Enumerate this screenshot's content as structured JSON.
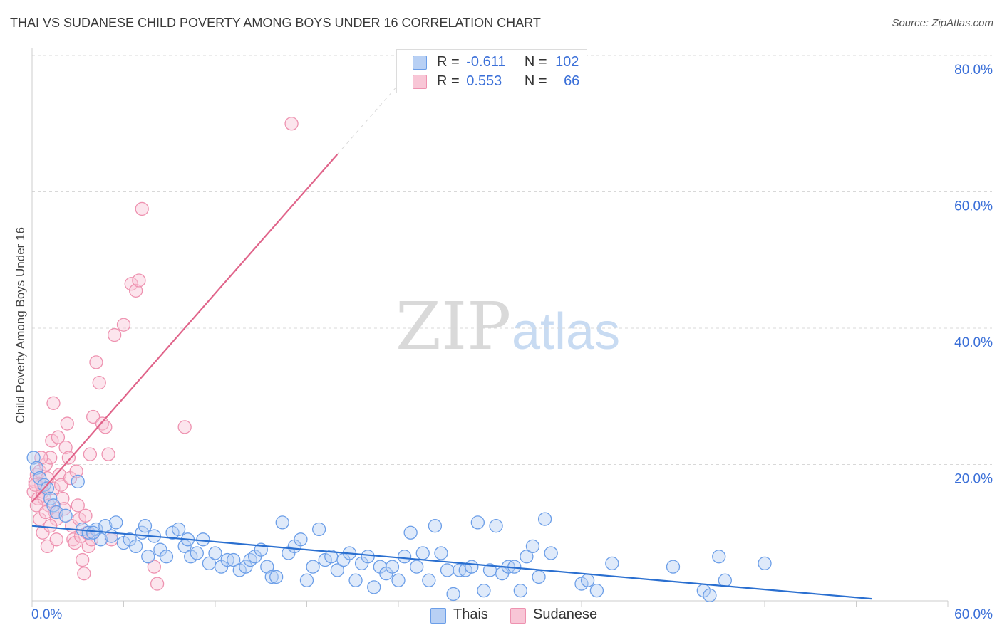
{
  "title": "THAI VS SUDANESE CHILD POVERTY AMONG BOYS UNDER 16 CORRELATION CHART",
  "source": "Source: ZipAtlas.com",
  "watermark": {
    "zip": "ZIP",
    "atlas": "atlas"
  },
  "colors": {
    "thai": "#6b9ee8",
    "thai_fill": "#b8d0f4",
    "thai_line": "#2a6fd0",
    "sudanese": "#ee92b0",
    "sudanese_fill": "#f8c6d6",
    "sudanese_line": "#e0648a",
    "axis_text": "#3a6fd8",
    "grid": "#d8d8d8"
  },
  "legend": {
    "thai": {
      "r_label": "R =",
      "r_value": "-0.611",
      "n_label": "N =",
      "n_value": "102"
    },
    "sudanese": {
      "r_label": "R =",
      "r_value": "0.553",
      "n_label": "N =",
      "n_value": "66"
    }
  },
  "bottom_legend": {
    "thai": "Thais",
    "sudanese": "Sudanese"
  },
  "chart_data": {
    "type": "scatter",
    "ylabel": "Child Poverty Among Boys Under 16",
    "xlabel": "",
    "xlim": [
      0,
      60
    ],
    "ylim": [
      0,
      80
    ],
    "x_tick_labels": [
      "0.0%",
      "60.0%"
    ],
    "y_tick_labels": [
      "20.0%",
      "40.0%",
      "60.0%",
      "80.0%"
    ],
    "y_ticks": [
      20,
      40,
      60,
      80
    ],
    "series": [
      {
        "name": "Thais",
        "trend": {
          "x": [
            0,
            55
          ],
          "y": [
            11.0,
            0.3
          ]
        },
        "points": [
          [
            0.1,
            21
          ],
          [
            0.3,
            19.5
          ],
          [
            0.5,
            18
          ],
          [
            0.8,
            17
          ],
          [
            1.0,
            16.5
          ],
          [
            1.2,
            15
          ],
          [
            1.4,
            14
          ],
          [
            1.6,
            13
          ],
          [
            2.2,
            12.5
          ],
          [
            3.0,
            17.5
          ],
          [
            3.3,
            10.5
          ],
          [
            3.7,
            10
          ],
          [
            4.2,
            10.5
          ],
          [
            4.5,
            9
          ],
          [
            4.8,
            11
          ],
          [
            5.2,
            9.5
          ],
          [
            5.5,
            11.5
          ],
          [
            6.0,
            8.5
          ],
          [
            6.4,
            9
          ],
          [
            6.8,
            8
          ],
          [
            7.2,
            10
          ],
          [
            7.6,
            6.5
          ],
          [
            8.0,
            9.5
          ],
          [
            8.4,
            7.5
          ],
          [
            8.8,
            6.5
          ],
          [
            9.2,
            10
          ],
          [
            9.6,
            10.5
          ],
          [
            10.0,
            8
          ],
          [
            10.4,
            6.5
          ],
          [
            10.8,
            7
          ],
          [
            11.2,
            9
          ],
          [
            11.6,
            5.5
          ],
          [
            12.0,
            7
          ],
          [
            12.4,
            5
          ],
          [
            12.8,
            6
          ],
          [
            13.2,
            6
          ],
          [
            13.6,
            4.5
          ],
          [
            14.0,
            5
          ],
          [
            14.3,
            6
          ],
          [
            14.6,
            6.5
          ],
          [
            15.0,
            7.5
          ],
          [
            15.4,
            5
          ],
          [
            15.7,
            3.5
          ],
          [
            16.0,
            3.5
          ],
          [
            16.4,
            11.5
          ],
          [
            16.8,
            7
          ],
          [
            17.2,
            8
          ],
          [
            17.6,
            9
          ],
          [
            18.0,
            3
          ],
          [
            18.4,
            5
          ],
          [
            18.8,
            10.5
          ],
          [
            19.2,
            6
          ],
          [
            19.6,
            6.5
          ],
          [
            20.0,
            4.5
          ],
          [
            20.4,
            6
          ],
          [
            20.8,
            7
          ],
          [
            21.2,
            3
          ],
          [
            21.6,
            5.5
          ],
          [
            22.0,
            6.5
          ],
          [
            22.4,
            2
          ],
          [
            22.8,
            5
          ],
          [
            23.2,
            4
          ],
          [
            23.6,
            5
          ],
          [
            24.0,
            3
          ],
          [
            24.4,
            6.5
          ],
          [
            24.8,
            10
          ],
          [
            25.2,
            5
          ],
          [
            25.6,
            7
          ],
          [
            26.0,
            3
          ],
          [
            26.4,
            11
          ],
          [
            26.8,
            7
          ],
          [
            27.2,
            4.5
          ],
          [
            27.6,
            1
          ],
          [
            28.0,
            4.5
          ],
          [
            28.4,
            4.5
          ],
          [
            28.8,
            5
          ],
          [
            29.2,
            11.5
          ],
          [
            29.6,
            1.5
          ],
          [
            30.0,
            4.5
          ],
          [
            30.4,
            11
          ],
          [
            30.8,
            4
          ],
          [
            31.2,
            5
          ],
          [
            31.6,
            5
          ],
          [
            32.0,
            1.5
          ],
          [
            32.4,
            6.5
          ],
          [
            32.8,
            8
          ],
          [
            33.2,
            3.5
          ],
          [
            33.6,
            12
          ],
          [
            34.0,
            7
          ],
          [
            36.0,
            2.5
          ],
          [
            36.4,
            3
          ],
          [
            37.0,
            1.5
          ],
          [
            38.0,
            5.5
          ],
          [
            42.0,
            5
          ],
          [
            44.0,
            1.5
          ],
          [
            44.4,
            0.8
          ],
          [
            45.0,
            6.5
          ],
          [
            45.4,
            3
          ],
          [
            48.0,
            5.5
          ],
          [
            10.2,
            9
          ],
          [
            7.4,
            11
          ],
          [
            4.0,
            10
          ]
        ]
      },
      {
        "name": "Sudanese",
        "trend": {
          "x": [
            0,
            20
          ],
          "y": [
            14.5,
            65.5
          ]
        },
        "trend_dashed": {
          "x": [
            20,
            24.5
          ],
          "y": [
            65.5,
            77
          ]
        },
        "points": [
          [
            0.1,
            16
          ],
          [
            0.2,
            17.5
          ],
          [
            0.3,
            18.5
          ],
          [
            0.4,
            15
          ],
          [
            0.5,
            19
          ],
          [
            0.6,
            17
          ],
          [
            0.7,
            16
          ],
          [
            0.8,
            15
          ],
          [
            0.9,
            20
          ],
          [
            1.0,
            18
          ],
          [
            1.1,
            14
          ],
          [
            1.2,
            21
          ],
          [
            1.3,
            23.5
          ],
          [
            1.4,
            16.5
          ],
          [
            1.5,
            13
          ],
          [
            1.6,
            12
          ],
          [
            1.7,
            24
          ],
          [
            1.8,
            18.5
          ],
          [
            1.9,
            17
          ],
          [
            2.0,
            15
          ],
          [
            2.1,
            13.5
          ],
          [
            2.2,
            22.5
          ],
          [
            2.3,
            26
          ],
          [
            2.4,
            21
          ],
          [
            2.5,
            18
          ],
          [
            2.6,
            11
          ],
          [
            2.7,
            9
          ],
          [
            2.8,
            8.5
          ],
          [
            2.9,
            19
          ],
          [
            3.0,
            14
          ],
          [
            3.1,
            12
          ],
          [
            3.2,
            9.5
          ],
          [
            3.3,
            6
          ],
          [
            3.4,
            4
          ],
          [
            3.5,
            12.5
          ],
          [
            3.6,
            10
          ],
          [
            3.7,
            8
          ],
          [
            3.8,
            21.5
          ],
          [
            3.9,
            9
          ],
          [
            4.0,
            27
          ],
          [
            4.2,
            35
          ],
          [
            4.4,
            32
          ],
          [
            4.6,
            26
          ],
          [
            4.8,
            25.5
          ],
          [
            5.0,
            21.5
          ],
          [
            5.2,
            9
          ],
          [
            5.4,
            39
          ],
          [
            6.0,
            40.5
          ],
          [
            6.5,
            46.5
          ],
          [
            6.8,
            45.5
          ],
          [
            7.0,
            47
          ],
          [
            7.2,
            57.5
          ],
          [
            8.0,
            5
          ],
          [
            8.2,
            2.5
          ],
          [
            10.0,
            25.5
          ],
          [
            17.0,
            70
          ],
          [
            0.5,
            12
          ],
          [
            0.7,
            10
          ],
          [
            1.0,
            8
          ],
          [
            1.4,
            29
          ],
          [
            0.3,
            14
          ],
          [
            0.6,
            21
          ],
          [
            0.9,
            13
          ],
          [
            1.2,
            11
          ],
          [
            1.6,
            9
          ],
          [
            0.2,
            17
          ]
        ]
      }
    ]
  }
}
